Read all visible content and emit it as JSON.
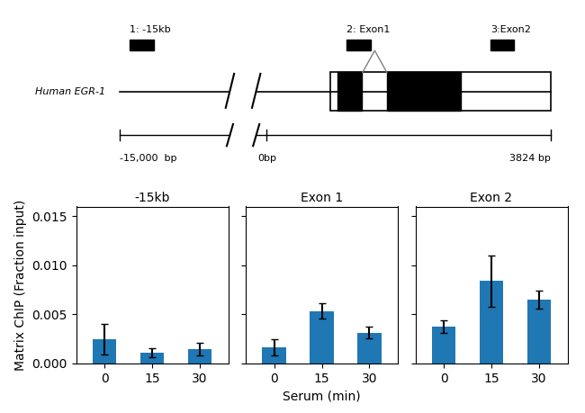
{
  "chart_data": [
    {
      "type": "diagram",
      "annotations": [
        "Human EGR-1",
        "1: -15kb",
        "2: Exon1",
        "3:Exon2",
        "-15,000  bp",
        "0bp",
        "3824 bp"
      ]
    },
    {
      "type": "bar",
      "title": "-15kb",
      "categories": [
        "0",
        "15",
        "30"
      ],
      "values": [
        0.00245,
        0.0011,
        0.00145
      ],
      "errors": [
        0.00155,
        0.00045,
        0.00065
      ],
      "ylabel": "Matrix ChIP (Fraction input)",
      "ylim": [
        0,
        0.016
      ],
      "yticks": [
        {
          "value": 0.0,
          "label": "0.000"
        },
        {
          "value": 0.005,
          "label": "0.005"
        },
        {
          "value": 0.01,
          "label": "0.010"
        },
        {
          "value": 0.015,
          "label": "0.015"
        }
      ]
    },
    {
      "type": "bar",
      "title": "Exon 1",
      "categories": [
        "0",
        "15",
        "30"
      ],
      "values": [
        0.00165,
        0.00535,
        0.00315
      ],
      "errors": [
        0.0008,
        0.0008,
        0.0006
      ],
      "xlabel": "Serum (min)",
      "ylim": [
        0,
        0.016
      ],
      "yticks": [
        0.0,
        0.005,
        0.01,
        0.015
      ],
      "tick_labels": "x"
    },
    {
      "type": "bar",
      "title": "Exon 2",
      "categories": [
        "0",
        "15",
        "30"
      ],
      "values": [
        0.00375,
        0.0084,
        0.0065
      ],
      "errors": [
        0.00065,
        0.0026,
        0.0009
      ],
      "ylim": [
        0,
        0.016
      ],
      "yticks": [
        0.0,
        0.005,
        0.01,
        0.015
      ],
      "tick_labels": "x"
    }
  ]
}
